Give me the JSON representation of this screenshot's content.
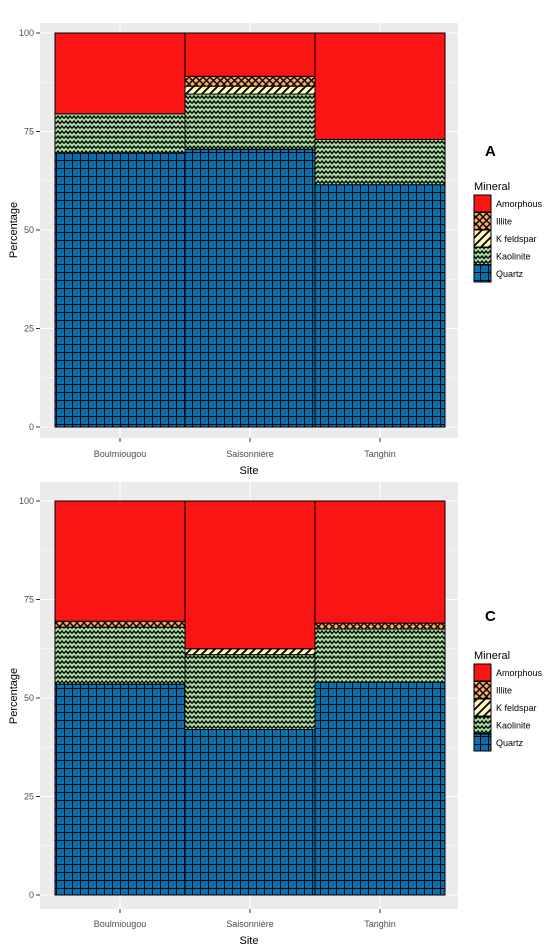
{
  "chart_data": [
    {
      "type": "bar",
      "stacked": true,
      "panel_label": "A",
      "categories": [
        "Boulmiougou",
        "Saisonnière",
        "Tanghin"
      ],
      "xlabel": "Site",
      "ylabel": "Percentage",
      "ylim": [
        0,
        100
      ],
      "yticks": [
        0,
        25,
        50,
        75,
        100
      ],
      "grid": true,
      "legend_title": "Mineral",
      "legend_position": "right",
      "series": [
        {
          "name": "Quartz",
          "color": "#0a6faa",
          "pattern": "grid",
          "values": [
            69.5,
            70.5,
            61.5
          ]
        },
        {
          "name": "Kaolinite",
          "color": "#a8dba0",
          "pattern": "zigzag",
          "values": [
            10,
            14,
            11.5
          ]
        },
        {
          "name": "K feldspar",
          "color": "#fff6bf",
          "pattern": "diagonal",
          "values": [
            0,
            2,
            0
          ]
        },
        {
          "name": "Illite",
          "color": "#f6a865",
          "pattern": "crosshatch",
          "values": [
            0,
            2.5,
            0
          ]
        },
        {
          "name": "Amorphous",
          "color": "#fa1414",
          "pattern": "none",
          "values": [
            20.5,
            11,
            27
          ]
        }
      ]
    },
    {
      "type": "bar",
      "stacked": true,
      "panel_label": "C",
      "categories": [
        "Boulmiougou",
        "Saisonnière",
        "Tanghin"
      ],
      "xlabel": "Site",
      "ylabel": "Percentage",
      "ylim": [
        0,
        100
      ],
      "yticks": [
        0,
        25,
        50,
        75,
        100
      ],
      "grid": true,
      "legend_title": "Mineral",
      "legend_position": "right",
      "series": [
        {
          "name": "Quartz",
          "color": "#0a6faa",
          "pattern": "grid",
          "values": [
            53.5,
            42,
            54
          ]
        },
        {
          "name": "Kaolinite",
          "color": "#a8dba0",
          "pattern": "zigzag",
          "values": [
            14.5,
            19,
            13.5
          ]
        },
        {
          "name": "K feldspar",
          "color": "#fff6bf",
          "pattern": "diagonal",
          "values": [
            0,
            1.5,
            0
          ]
        },
        {
          "name": "Illite",
          "color": "#f6a865",
          "pattern": "crosshatch",
          "values": [
            1.5,
            0,
            1.5
          ]
        },
        {
          "name": "Amorphous",
          "color": "#fa1414",
          "pattern": "none",
          "values": [
            30.5,
            37.5,
            31
          ]
        }
      ]
    }
  ]
}
